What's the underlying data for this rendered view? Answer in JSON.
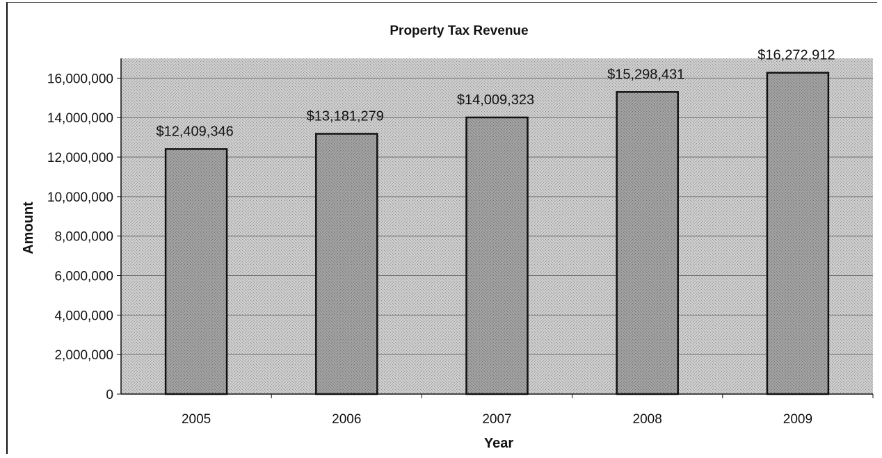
{
  "chart_data": {
    "type": "bar",
    "title": "Property Tax Revenue",
    "xlabel": "Year",
    "ylabel": "Amount",
    "categories": [
      "2005",
      "2006",
      "2007",
      "2008",
      "2009"
    ],
    "values": [
      12409346,
      13181279,
      14009323,
      15298431,
      16272912
    ],
    "data_labels": [
      "$12,409,346",
      "$13,181,279",
      "$14,009,323",
      "$15,298,431",
      "$16,272,912"
    ],
    "ylim": [
      0,
      17000000
    ],
    "yticks": [
      0,
      2000000,
      4000000,
      6000000,
      8000000,
      10000000,
      12000000,
      14000000,
      16000000
    ],
    "ytick_labels": [
      "0",
      "2,000,000",
      "4,000,000",
      "6,000,000",
      "8,000,000",
      "10,000,000",
      "12,000,000",
      "14,000,000",
      "16,000,000"
    ],
    "grid": true,
    "legend": "none",
    "colors": {
      "plot_background": "#c9c9c9",
      "bar_fill": "#9a9a9a",
      "bar_edge": "#111111",
      "grid": "#6f6f6f"
    }
  }
}
